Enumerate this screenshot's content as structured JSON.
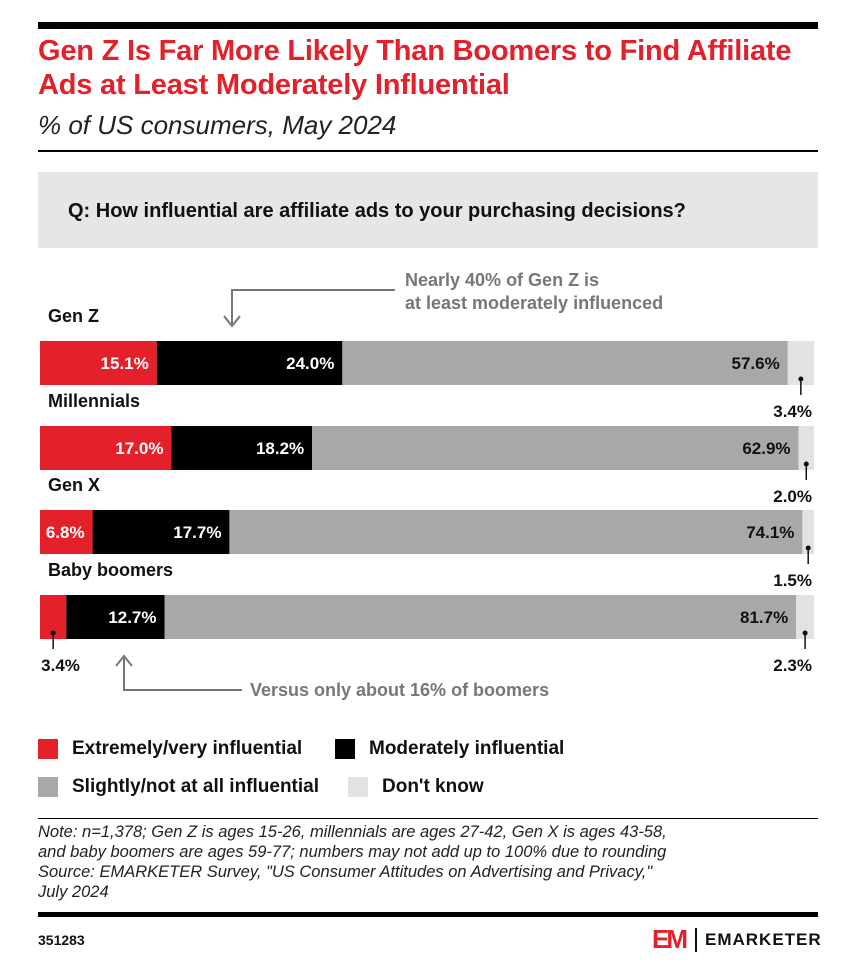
{
  "header": {
    "title": "Gen Z Is Far More Likely Than Boomers to Find Affiliate Ads at Least Moderately Influential",
    "subtitle": "% of US consumers, May 2024",
    "question": "Q: How influential are affiliate ads to your purchasing decisions?"
  },
  "chart_data": {
    "type": "bar",
    "orientation": "horizontal",
    "stacked": true,
    "normalized_percent": true,
    "xlim": [
      0,
      100
    ],
    "categories": [
      "Gen Z",
      "Millennials",
      "Gen X",
      "Baby boomers"
    ],
    "series": [
      {
        "name": "Extremely/very influential",
        "color": "#e4202a",
        "values": [
          15.1,
          17.0,
          6.8,
          3.4
        ],
        "labels": [
          "15.1%",
          "17.0%",
          "6.8%",
          "3.4%"
        ]
      },
      {
        "name": "Moderately influential",
        "color": "#000000",
        "values": [
          24.0,
          18.2,
          17.7,
          12.7
        ],
        "labels": [
          "24.0%",
          "18.2%",
          "17.7%",
          "12.7%"
        ]
      },
      {
        "name": "Slightly/not at all influential",
        "color": "#a8a8a8",
        "values": [
          57.6,
          62.9,
          74.1,
          81.7
        ],
        "labels": [
          "57.6%",
          "62.9%",
          "74.1%",
          "81.7%"
        ]
      },
      {
        "name": "Don't know",
        "color": "#e2e2e2",
        "values": [
          3.4,
          2.0,
          1.5,
          2.3
        ],
        "labels": [
          "3.4%",
          "2.0%",
          "1.5%",
          "2.3%"
        ]
      }
    ],
    "annotations": [
      {
        "text_line1": "Nearly 40% of Gen Z is",
        "text_line2": "at least moderately influenced",
        "target": "Gen Z",
        "position": "above"
      },
      {
        "text_line1": "Versus only about 16% of boomers",
        "target": "Baby boomers",
        "position": "below"
      }
    ],
    "legend_position": "bottom-left"
  },
  "legend": [
    {
      "label": "Extremely/very influential",
      "color": "#e4202a"
    },
    {
      "label": "Moderately influential",
      "color": "#000000"
    },
    {
      "label": "Slightly/not at all influential",
      "color": "#a8a8a8"
    },
    {
      "label": "Don't know",
      "color": "#e2e2e2"
    }
  ],
  "footer": {
    "note_lines": [
      "Note: n=1,378; Gen Z is ages 15-26, millennials are ages 27-42, Gen X is ages 43-58,",
      "and baby boomers are ages 59-77; numbers may not add up to 100% due to rounding",
      "Source: EMARKETER Survey, \"US Consumer Attitudes on Advertising and Privacy,\"",
      "July 2024"
    ],
    "chart_id": "351283",
    "logo_mark": "EM",
    "logo_text": "EMARKETER"
  }
}
